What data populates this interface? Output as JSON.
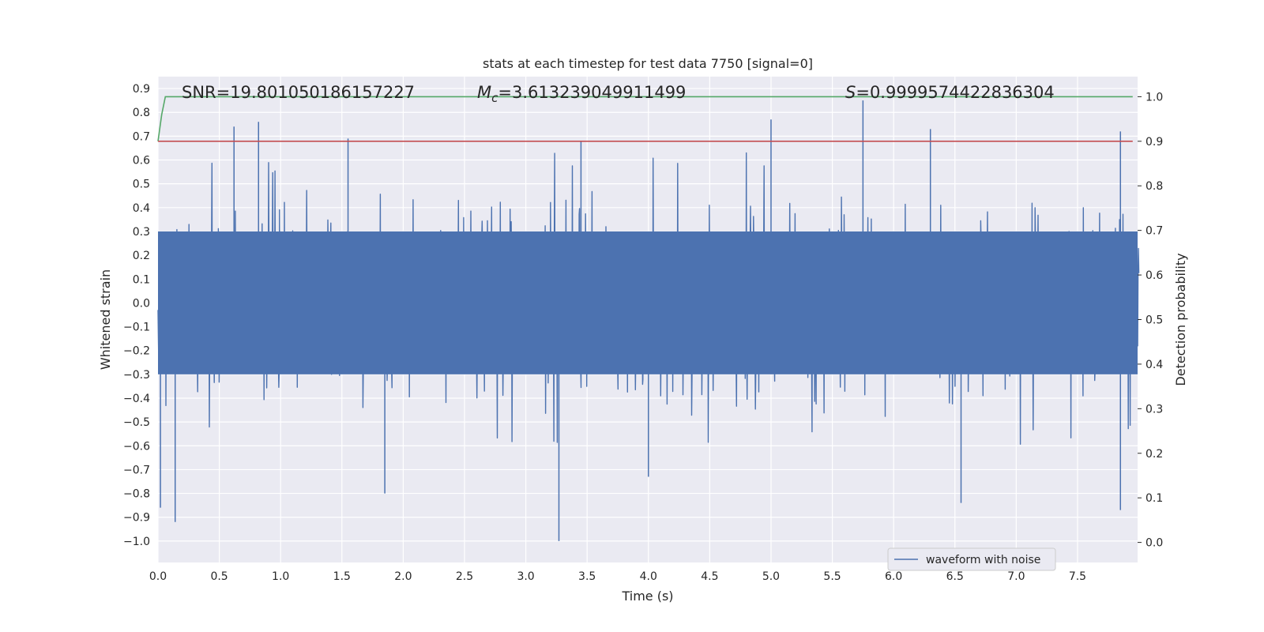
{
  "chart_data": {
    "type": "line",
    "title": "stats at each timestep for test data 7750 [signal=0]",
    "xlabel": "Time (s)",
    "ylabel": "Whitened strain",
    "y2label": "Detection probability",
    "xlim": [
      0.0,
      7.99
    ],
    "ylim": [
      -1.09,
      0.95
    ],
    "y2lim": [
      -0.045,
      1.045
    ],
    "grid": true,
    "legend_position": "lower-right",
    "x_ticks": [
      "0.0",
      "0.5",
      "1.0",
      "1.5",
      "2.0",
      "2.5",
      "3.0",
      "3.5",
      "4.0",
      "4.5",
      "5.0",
      "5.5",
      "6.0",
      "6.5",
      "7.0",
      "7.5"
    ],
    "y_ticks": [
      "0.9",
      "0.8",
      "0.7",
      "0.6",
      "0.5",
      "0.4",
      "0.3",
      "0.2",
      "0.1",
      "0.0",
      "−0.1",
      "−0.2",
      "−0.3",
      "−0.4",
      "−0.5",
      "−0.6",
      "−0.7",
      "−0.8",
      "−0.9",
      "−1.0"
    ],
    "y2_ticks": [
      "1.0",
      "0.9",
      "0.8",
      "0.7",
      "0.6",
      "0.5",
      "0.4",
      "0.3",
      "0.2",
      "0.1",
      "0.0"
    ],
    "annotations": {
      "snr": "SNR=19.801050186157227",
      "mc_symbol": "M",
      "mc_subscript": "c",
      "mc_value": "=3.613239049911499",
      "s_symbol": "S",
      "s_value": "=0.9999574422836304"
    },
    "series": [
      {
        "name": "waveform with noise",
        "axis": "left",
        "color": "#4c72b0",
        "noise": {
          "duration_s": 8.0,
          "typical_envelope": [
            -0.3,
            0.3
          ],
          "max": 0.85,
          "min": -1.0
        },
        "peaks": [
          {
            "x": 0.62,
            "y": 0.74
          },
          {
            "x": 0.82,
            "y": 0.76
          },
          {
            "x": 1.55,
            "y": 0.69
          },
          {
            "x": 3.45,
            "y": 0.68
          },
          {
            "x": 5.0,
            "y": 0.77
          },
          {
            "x": 5.75,
            "y": 0.85
          },
          {
            "x": 6.3,
            "y": 0.73
          },
          {
            "x": 7.85,
            "y": 0.72
          }
        ],
        "troughs": [
          {
            "x": 0.02,
            "y": -0.86
          },
          {
            "x": 0.14,
            "y": -0.92
          },
          {
            "x": 1.85,
            "y": -0.8
          },
          {
            "x": 3.27,
            "y": -1.0
          },
          {
            "x": 4.0,
            "y": -0.73
          },
          {
            "x": 6.55,
            "y": -0.84
          },
          {
            "x": 7.85,
            "y": -0.87
          }
        ]
      },
      {
        "name": "",
        "axis": "right",
        "color": "#55a868",
        "x": [
          0.0,
          0.03,
          0.06,
          7.95
        ],
        "y": [
          0.9,
          0.96,
          1.0,
          1.0
        ]
      },
      {
        "name": "",
        "axis": "right",
        "color": "#c44e52",
        "x": [
          0.0,
          7.95
        ],
        "y": [
          0.9,
          0.9
        ]
      }
    ]
  }
}
